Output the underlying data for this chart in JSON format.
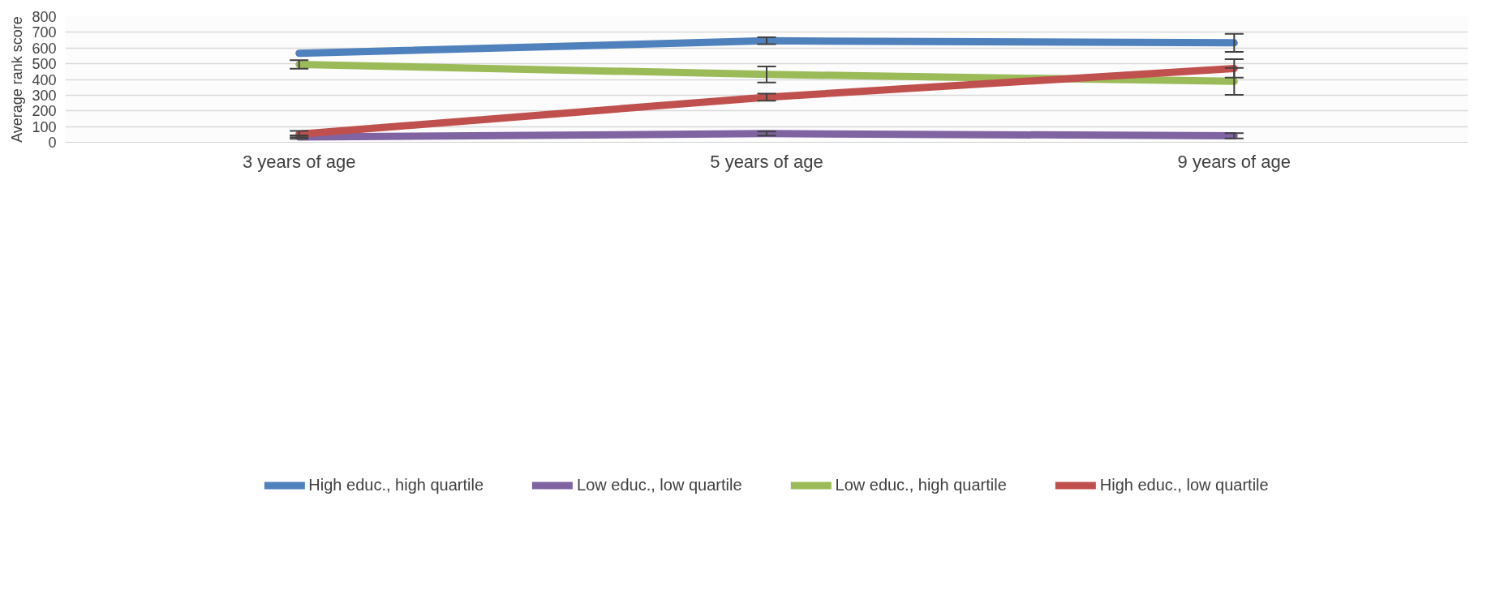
{
  "chart_data": {
    "type": "line",
    "ylabel": "Average rank score",
    "categories": [
      "3 years of age",
      "5 years of age",
      "9 years of age"
    ],
    "series": [
      {
        "name": "High educ., high quartile",
        "color": "#4f81bd",
        "values": [
          567,
          646,
          633
        ],
        "errors": [
          null,
          22,
          57
        ]
      },
      {
        "name": "Low educ., low quartile",
        "color": "#8064a2",
        "values": [
          33,
          55,
          41
        ],
        "errors": [
          11,
          13,
          17
        ]
      },
      {
        "name": "Low educ., high quartile",
        "color": "#9bbb59",
        "values": [
          496,
          432,
          388
        ],
        "errors": [
          27,
          51,
          86
        ]
      },
      {
        "name": "High educ., low quartile",
        "color": "#c0504d",
        "values": [
          52,
          287,
          470
        ],
        "errors": [
          20,
          23,
          59
        ]
      }
    ],
    "ylim": [
      0,
      800
    ],
    "yticks": [
      0,
      100,
      200,
      300,
      400,
      500,
      600,
      700,
      800
    ],
    "grid": "y",
    "legend": "bottom",
    "marker": "none",
    "line_style": "solid"
  }
}
